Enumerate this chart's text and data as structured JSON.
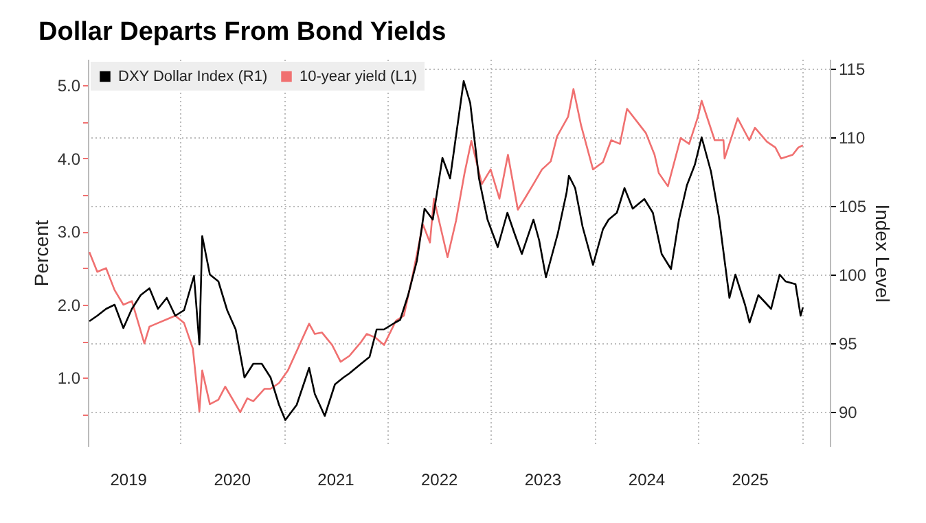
{
  "chart_data": {
    "type": "line",
    "title": "Dollar Departs From Bond Yields",
    "ylabel": "Percent",
    "y2label": "Index Level",
    "xlim": [
      "2019-02-10",
      "2026-04-10"
    ],
    "xticks": [
      {
        "value": "2019-07-01",
        "label": "2019"
      },
      {
        "value": "2020-01-01",
        "label": null
      },
      {
        "value": "2020-07-01",
        "label": "2020"
      },
      {
        "value": "2021-01-01",
        "label": null
      },
      {
        "value": "2021-07-01",
        "label": "2021"
      },
      {
        "value": "2022-01-01",
        "label": null
      },
      {
        "value": "2022-07-01",
        "label": "2022"
      },
      {
        "value": "2023-01-01",
        "label": null
      },
      {
        "value": "2023-07-01",
        "label": "2023"
      },
      {
        "value": "2024-01-01",
        "label": null
      },
      {
        "value": "2024-07-01",
        "label": "2024"
      },
      {
        "value": "2025-01-01",
        "label": null
      },
      {
        "value": "2025-07-01",
        "label": "2025"
      },
      {
        "value": "2026-01-01",
        "label": null
      }
    ],
    "ylim": [
      0.066,
      5.36
    ],
    "yticks": [
      {
        "value": 0.5,
        "label": null
      },
      {
        "value": 1,
        "label": "1.0"
      },
      {
        "value": 1.5,
        "label": null
      },
      {
        "value": 2,
        "label": "2.0"
      },
      {
        "value": 2.5,
        "label": null
      },
      {
        "value": 3,
        "label": "3.0"
      },
      {
        "value": 3.5,
        "label": null
      },
      {
        "value": 4,
        "label": "4.0"
      },
      {
        "value": 4.5,
        "label": null
      },
      {
        "value": 5,
        "label": "5.0"
      }
    ],
    "y2lim": [
      87.5,
      115.7
    ],
    "y2ticks": [
      90,
      95,
      100,
      105,
      110,
      115
    ],
    "grid": true,
    "legend": "top left",
    "series": [
      {
        "name": "DXY Dollar Index (R1)",
        "color": "#000000",
        "axis": "y2",
        "x": [
          "2019-02-15",
          "2019-03-15",
          "2019-04-15",
          "2019-05-15",
          "2019-06-15",
          "2019-07-15",
          "2019-08-15",
          "2019-09-15",
          "2019-10-15",
          "2019-11-15",
          "2019-12-15",
          "2020-01-15",
          "2020-02-19",
          "2020-03-09",
          "2020-03-19",
          "2020-04-15",
          "2020-05-15",
          "2020-06-15",
          "2020-07-15",
          "2020-08-15",
          "2020-09-15",
          "2020-10-15",
          "2020-11-15",
          "2020-12-15",
          "2021-01-06",
          "2021-02-15",
          "2021-03-31",
          "2021-04-20",
          "2021-05-25",
          "2021-06-30",
          "2021-07-30",
          "2021-08-20",
          "2021-09-30",
          "2021-10-30",
          "2021-11-24",
          "2021-12-20",
          "2022-01-28",
          "2022-02-15",
          "2022-03-15",
          "2022-04-15",
          "2022-05-12",
          "2022-06-10",
          "2022-07-14",
          "2022-08-10",
          "2022-09-27",
          "2022-10-20",
          "2022-11-20",
          "2022-12-20",
          "2023-01-25",
          "2023-02-28",
          "2023-03-25",
          "2023-04-20",
          "2023-05-31",
          "2023-06-20",
          "2023-07-14",
          "2023-08-25",
          "2023-09-25",
          "2023-10-03",
          "2023-10-25",
          "2023-11-20",
          "2023-12-27",
          "2024-01-31",
          "2024-02-20",
          "2024-03-20",
          "2024-04-16",
          "2024-05-15",
          "2024-06-25",
          "2024-07-25",
          "2024-08-25",
          "2024-09-27",
          "2024-10-25",
          "2024-11-22",
          "2024-12-20",
          "2025-01-13",
          "2025-02-15",
          "2025-03-15",
          "2025-04-21",
          "2025-05-12",
          "2025-06-15",
          "2025-07-01",
          "2025-08-01",
          "2025-09-15",
          "2025-10-15",
          "2025-11-05",
          "2025-12-10",
          "2025-12-28",
          "2026-01-05"
        ],
        "values": [
          96.6,
          97.0,
          97.5,
          97.8,
          96.1,
          97.5,
          98.5,
          99.0,
          97.5,
          98.3,
          97.0,
          97.4,
          99.9,
          94.9,
          102.8,
          100.0,
          99.5,
          97.4,
          96.0,
          92.5,
          93.5,
          93.5,
          92.5,
          90.5,
          89.4,
          90.5,
          93.2,
          91.3,
          89.7,
          92.0,
          92.5,
          92.8,
          93.5,
          94.0,
          96.0,
          96.0,
          96.5,
          96.7,
          98.5,
          101.0,
          104.8,
          104.0,
          108.5,
          107.0,
          114.1,
          112.5,
          107.0,
          104.0,
          102.0,
          104.5,
          103.0,
          101.5,
          104.0,
          102.5,
          99.8,
          103.0,
          106.0,
          107.2,
          106.3,
          103.5,
          100.7,
          103.3,
          104.0,
          104.5,
          106.3,
          104.8,
          105.5,
          104.5,
          101.5,
          100.4,
          104.0,
          106.5,
          108.0,
          110.0,
          107.5,
          104.2,
          98.3,
          100.0,
          97.8,
          96.5,
          98.5,
          97.5,
          100.0,
          99.5,
          99.3,
          97.0,
          97.6
        ]
      },
      {
        "name": "10-year yield (L1)",
        "color": "#f07070",
        "axis": "y",
        "x": [
          "2019-02-15",
          "2019-03-15",
          "2019-04-15",
          "2019-05-15",
          "2019-06-15",
          "2019-07-15",
          "2019-08-28",
          "2019-09-15",
          "2019-10-15",
          "2019-11-15",
          "2019-12-15",
          "2020-01-15",
          "2020-02-15",
          "2020-03-09",
          "2020-03-19",
          "2020-04-15",
          "2020-05-15",
          "2020-06-08",
          "2020-07-31",
          "2020-08-25",
          "2020-09-15",
          "2020-10-25",
          "2020-11-15",
          "2020-12-15",
          "2021-01-15",
          "2021-02-25",
          "2021-03-31",
          "2021-04-20",
          "2021-05-15",
          "2021-06-20",
          "2021-07-20",
          "2021-08-20",
          "2021-09-30",
          "2021-10-20",
          "2021-11-20",
          "2021-12-20",
          "2022-01-31",
          "2022-02-28",
          "2022-03-31",
          "2022-05-06",
          "2022-05-31",
          "2022-06-14",
          "2022-08-01",
          "2022-08-31",
          "2022-09-30",
          "2022-10-24",
          "2022-11-30",
          "2022-12-31",
          "2023-01-31",
          "2023-03-02",
          "2023-04-06",
          "2023-04-30",
          "2023-05-31",
          "2023-06-30",
          "2023-07-31",
          "2023-08-22",
          "2023-09-30",
          "2023-10-19",
          "2023-11-15",
          "2023-12-27",
          "2024-01-31",
          "2024-02-29",
          "2024-03-31",
          "2024-04-25",
          "2024-05-31",
          "2024-06-30",
          "2024-07-31",
          "2024-08-15",
          "2024-09-16",
          "2024-10-31",
          "2024-11-30",
          "2024-12-31",
          "2025-01-13",
          "2025-02-28",
          "2025-03-31",
          "2025-04-04",
          "2025-05-20",
          "2025-06-30",
          "2025-07-20",
          "2025-08-31",
          "2025-09-30",
          "2025-10-20",
          "2025-11-30",
          "2025-12-20",
          "2026-01-05"
        ],
        "values": [
          2.72,
          2.45,
          2.5,
          2.2,
          2.0,
          2.05,
          1.47,
          1.7,
          1.75,
          1.8,
          1.85,
          1.75,
          1.4,
          0.54,
          1.1,
          0.64,
          0.7,
          0.88,
          0.53,
          0.72,
          0.68,
          0.85,
          0.85,
          0.93,
          1.1,
          1.45,
          1.74,
          1.6,
          1.62,
          1.45,
          1.22,
          1.3,
          1.49,
          1.6,
          1.55,
          1.45,
          1.78,
          1.85,
          2.4,
          3.1,
          2.85,
          3.45,
          2.65,
          3.15,
          3.8,
          4.24,
          3.65,
          3.85,
          3.45,
          4.05,
          3.3,
          3.45,
          3.65,
          3.85,
          3.96,
          4.3,
          4.57,
          4.95,
          4.45,
          3.85,
          3.95,
          4.25,
          4.2,
          4.68,
          4.5,
          4.35,
          4.05,
          3.8,
          3.62,
          4.28,
          4.2,
          4.57,
          4.79,
          4.25,
          4.25,
          4.0,
          4.55,
          4.25,
          4.42,
          4.23,
          4.15,
          4.0,
          4.05,
          4.15,
          4.18
        ]
      }
    ]
  }
}
